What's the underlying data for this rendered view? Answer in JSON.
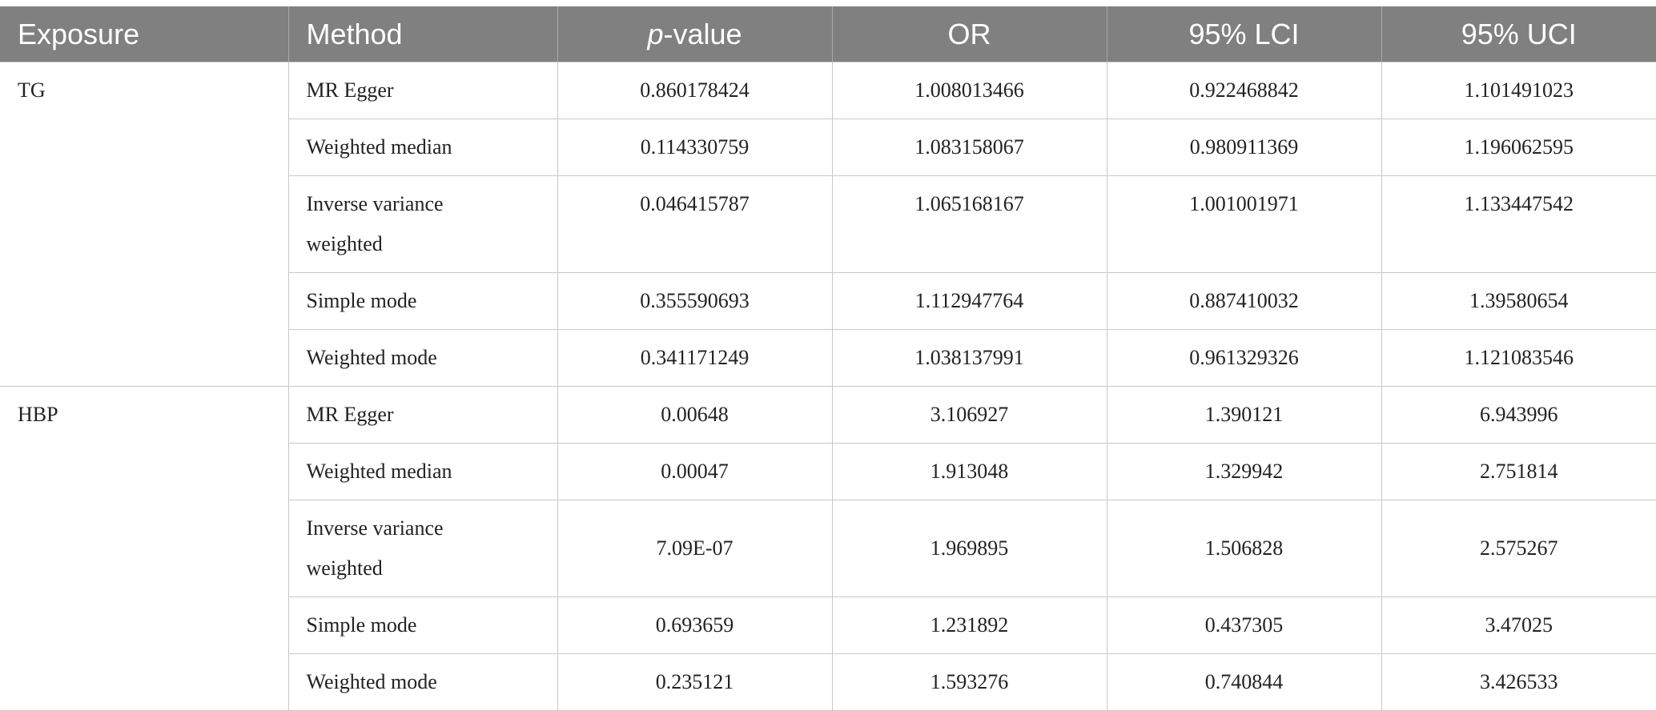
{
  "header": {
    "exposure": "Exposure",
    "method": "Method",
    "pvalue_p": "p",
    "pvalue_rest": "-value",
    "or": "OR",
    "lci": "95% LCI",
    "uci": "95% UCI"
  },
  "groups": [
    {
      "exposure": "TG",
      "rows": [
        {
          "method": "MR Egger",
          "p": "0.860178424",
          "or": "1.008013466",
          "lci": "0.922468842",
          "uci": "1.101491023"
        },
        {
          "method": "Weighted median",
          "p": "0.114330759",
          "or": "1.083158067",
          "lci": "0.980911369",
          "uci": "1.196062595"
        },
        {
          "method": "Inverse variance weighted",
          "p": "0.046415787",
          "or": "1.065168167",
          "lci": "1.001001971",
          "uci": "1.133447542"
        },
        {
          "method": "Simple mode",
          "p": "0.355590693",
          "or": "1.112947764",
          "lci": "0.887410032",
          "uci": "1.39580654"
        },
        {
          "method": "Weighted mode",
          "p": "0.341171249",
          "or": "1.038137991",
          "lci": "0.961329326",
          "uci": "1.121083546"
        }
      ]
    },
    {
      "exposure": "HBP",
      "rows": [
        {
          "method": "MR Egger",
          "p": "0.00648",
          "or": "3.106927",
          "lci": "1.390121",
          "uci": "6.943996"
        },
        {
          "method": "Weighted median",
          "p": "0.00047",
          "or": "1.913048",
          "lci": "1.329942",
          "uci": "2.751814"
        },
        {
          "method": "Inverse variance weighted",
          "p": "7.09E-07",
          "or": "1.969895",
          "lci": "1.506828",
          "uci": "2.575267"
        },
        {
          "method": "Simple mode",
          "p": "0.693659",
          "or": "1.231892",
          "lci": "0.437305",
          "uci": "3.47025"
        },
        {
          "method": "Weighted mode",
          "p": "0.235121",
          "or": "1.593276",
          "lci": "0.740844",
          "uci": "3.426533"
        }
      ]
    }
  ]
}
